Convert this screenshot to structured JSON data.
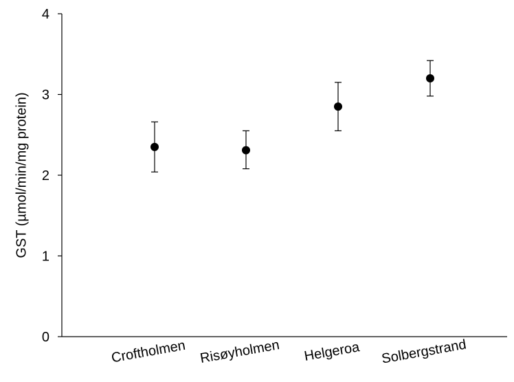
{
  "chart_data": {
    "type": "scatter",
    "title": "",
    "xlabel": "",
    "ylabel": "GST (µmol/min/mg protein)",
    "ylim": [
      0,
      4
    ],
    "yticks": [
      0,
      1,
      2,
      3,
      4
    ],
    "categories": [
      "Croftholmen",
      "Risøyholmen",
      "Helgeroa",
      "Solbergstrand"
    ],
    "values": [
      2.35,
      2.31,
      2.85,
      3.2
    ],
    "error_low": [
      2.04,
      2.08,
      2.55,
      2.98
    ],
    "error_high": [
      2.66,
      2.55,
      3.15,
      3.42
    ],
    "grid": false,
    "legend": "none",
    "colors": {
      "marker": "#000000",
      "axis": "#000000"
    }
  }
}
